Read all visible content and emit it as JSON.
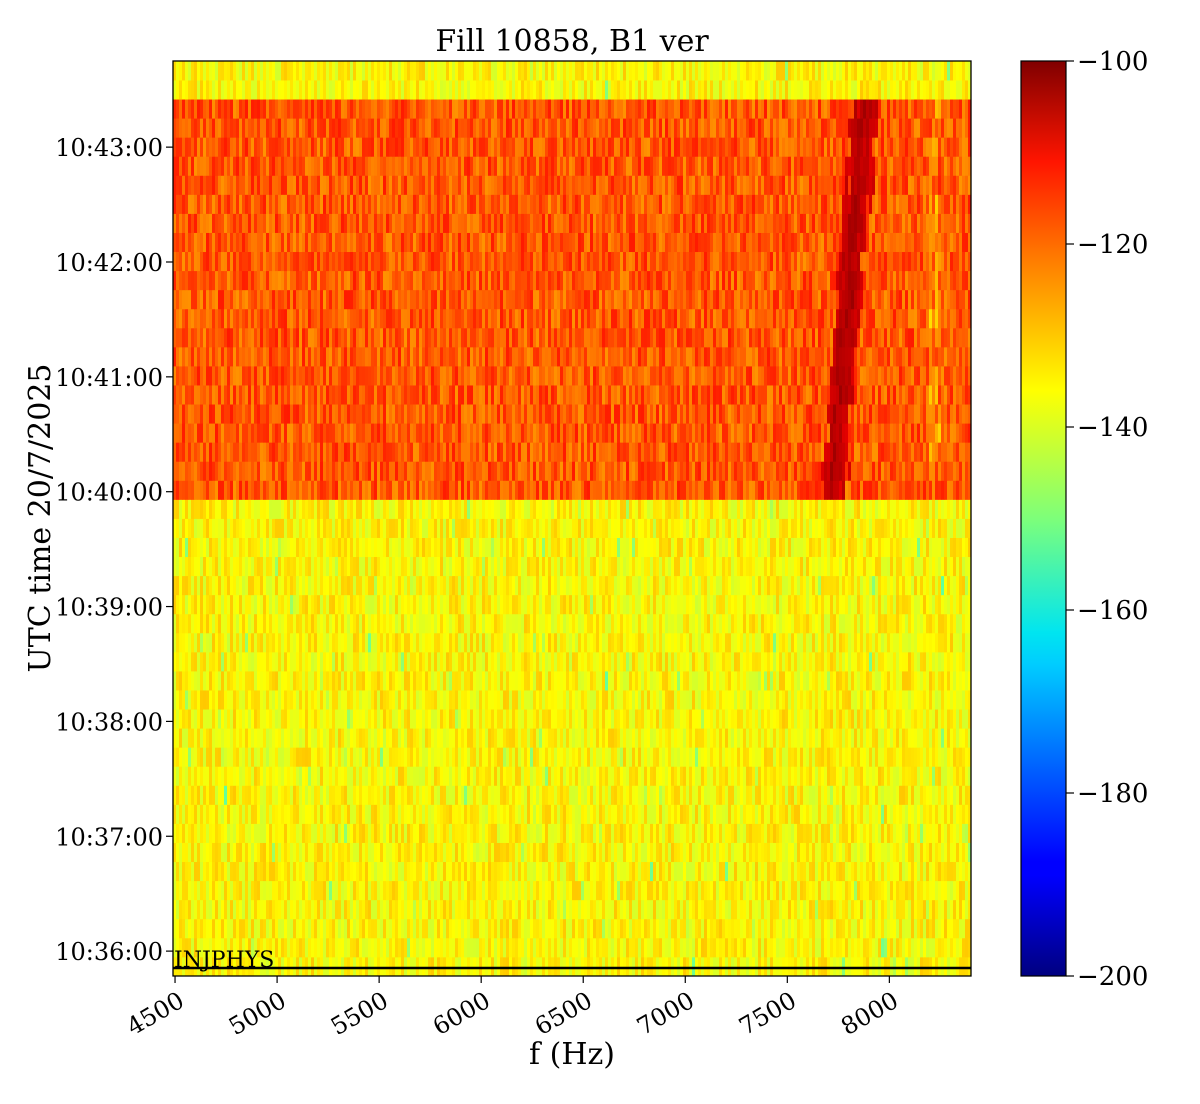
{
  "chart_data": {
    "type": "heatmap",
    "title": "Fill 10858, B1 ver",
    "xlabel": "f (Hz)",
    "ylabel": "UTC time 20/7/2025",
    "xlim": [
      4490,
      8400
    ],
    "x_ticks": [
      4500,
      5000,
      5500,
      6000,
      6500,
      7000,
      7500,
      8000
    ],
    "x_tick_labels": [
      "4500",
      "5000",
      "5500",
      "6000",
      "6500",
      "7000",
      "7500",
      "8000"
    ],
    "y_range_seconds_from_1035": [
      47,
      525
    ],
    "y_ticks_seconds": [
      60,
      120,
      180,
      240,
      300,
      360,
      420,
      480
    ],
    "y_tick_labels": [
      "10:36:00",
      "10:37:00",
      "10:38:00",
      "10:39:00",
      "10:40:00",
      "10:41:00",
      "10:42:00",
      "10:43:00"
    ],
    "colormap": "jet",
    "color_range": [
      -200,
      -100
    ],
    "colorbar_ticks": [
      -100,
      -120,
      -140,
      -160,
      -180,
      -200
    ],
    "colorbar_tick_labels": [
      "−100",
      "−120",
      "−140",
      "−160",
      "−180",
      "−200"
    ],
    "background_level_before": -137,
    "background_level_after": -121,
    "transition_time": "10:40:00",
    "top_band_level": -137,
    "top_band_start_seconds": 505,
    "line_feature": {
      "description_hz": [
        7700,
        7900
      ],
      "peak_level": -102
    },
    "annotation": {
      "text": "INJPHYS",
      "time_seconds": 51
    },
    "grid": false
  }
}
